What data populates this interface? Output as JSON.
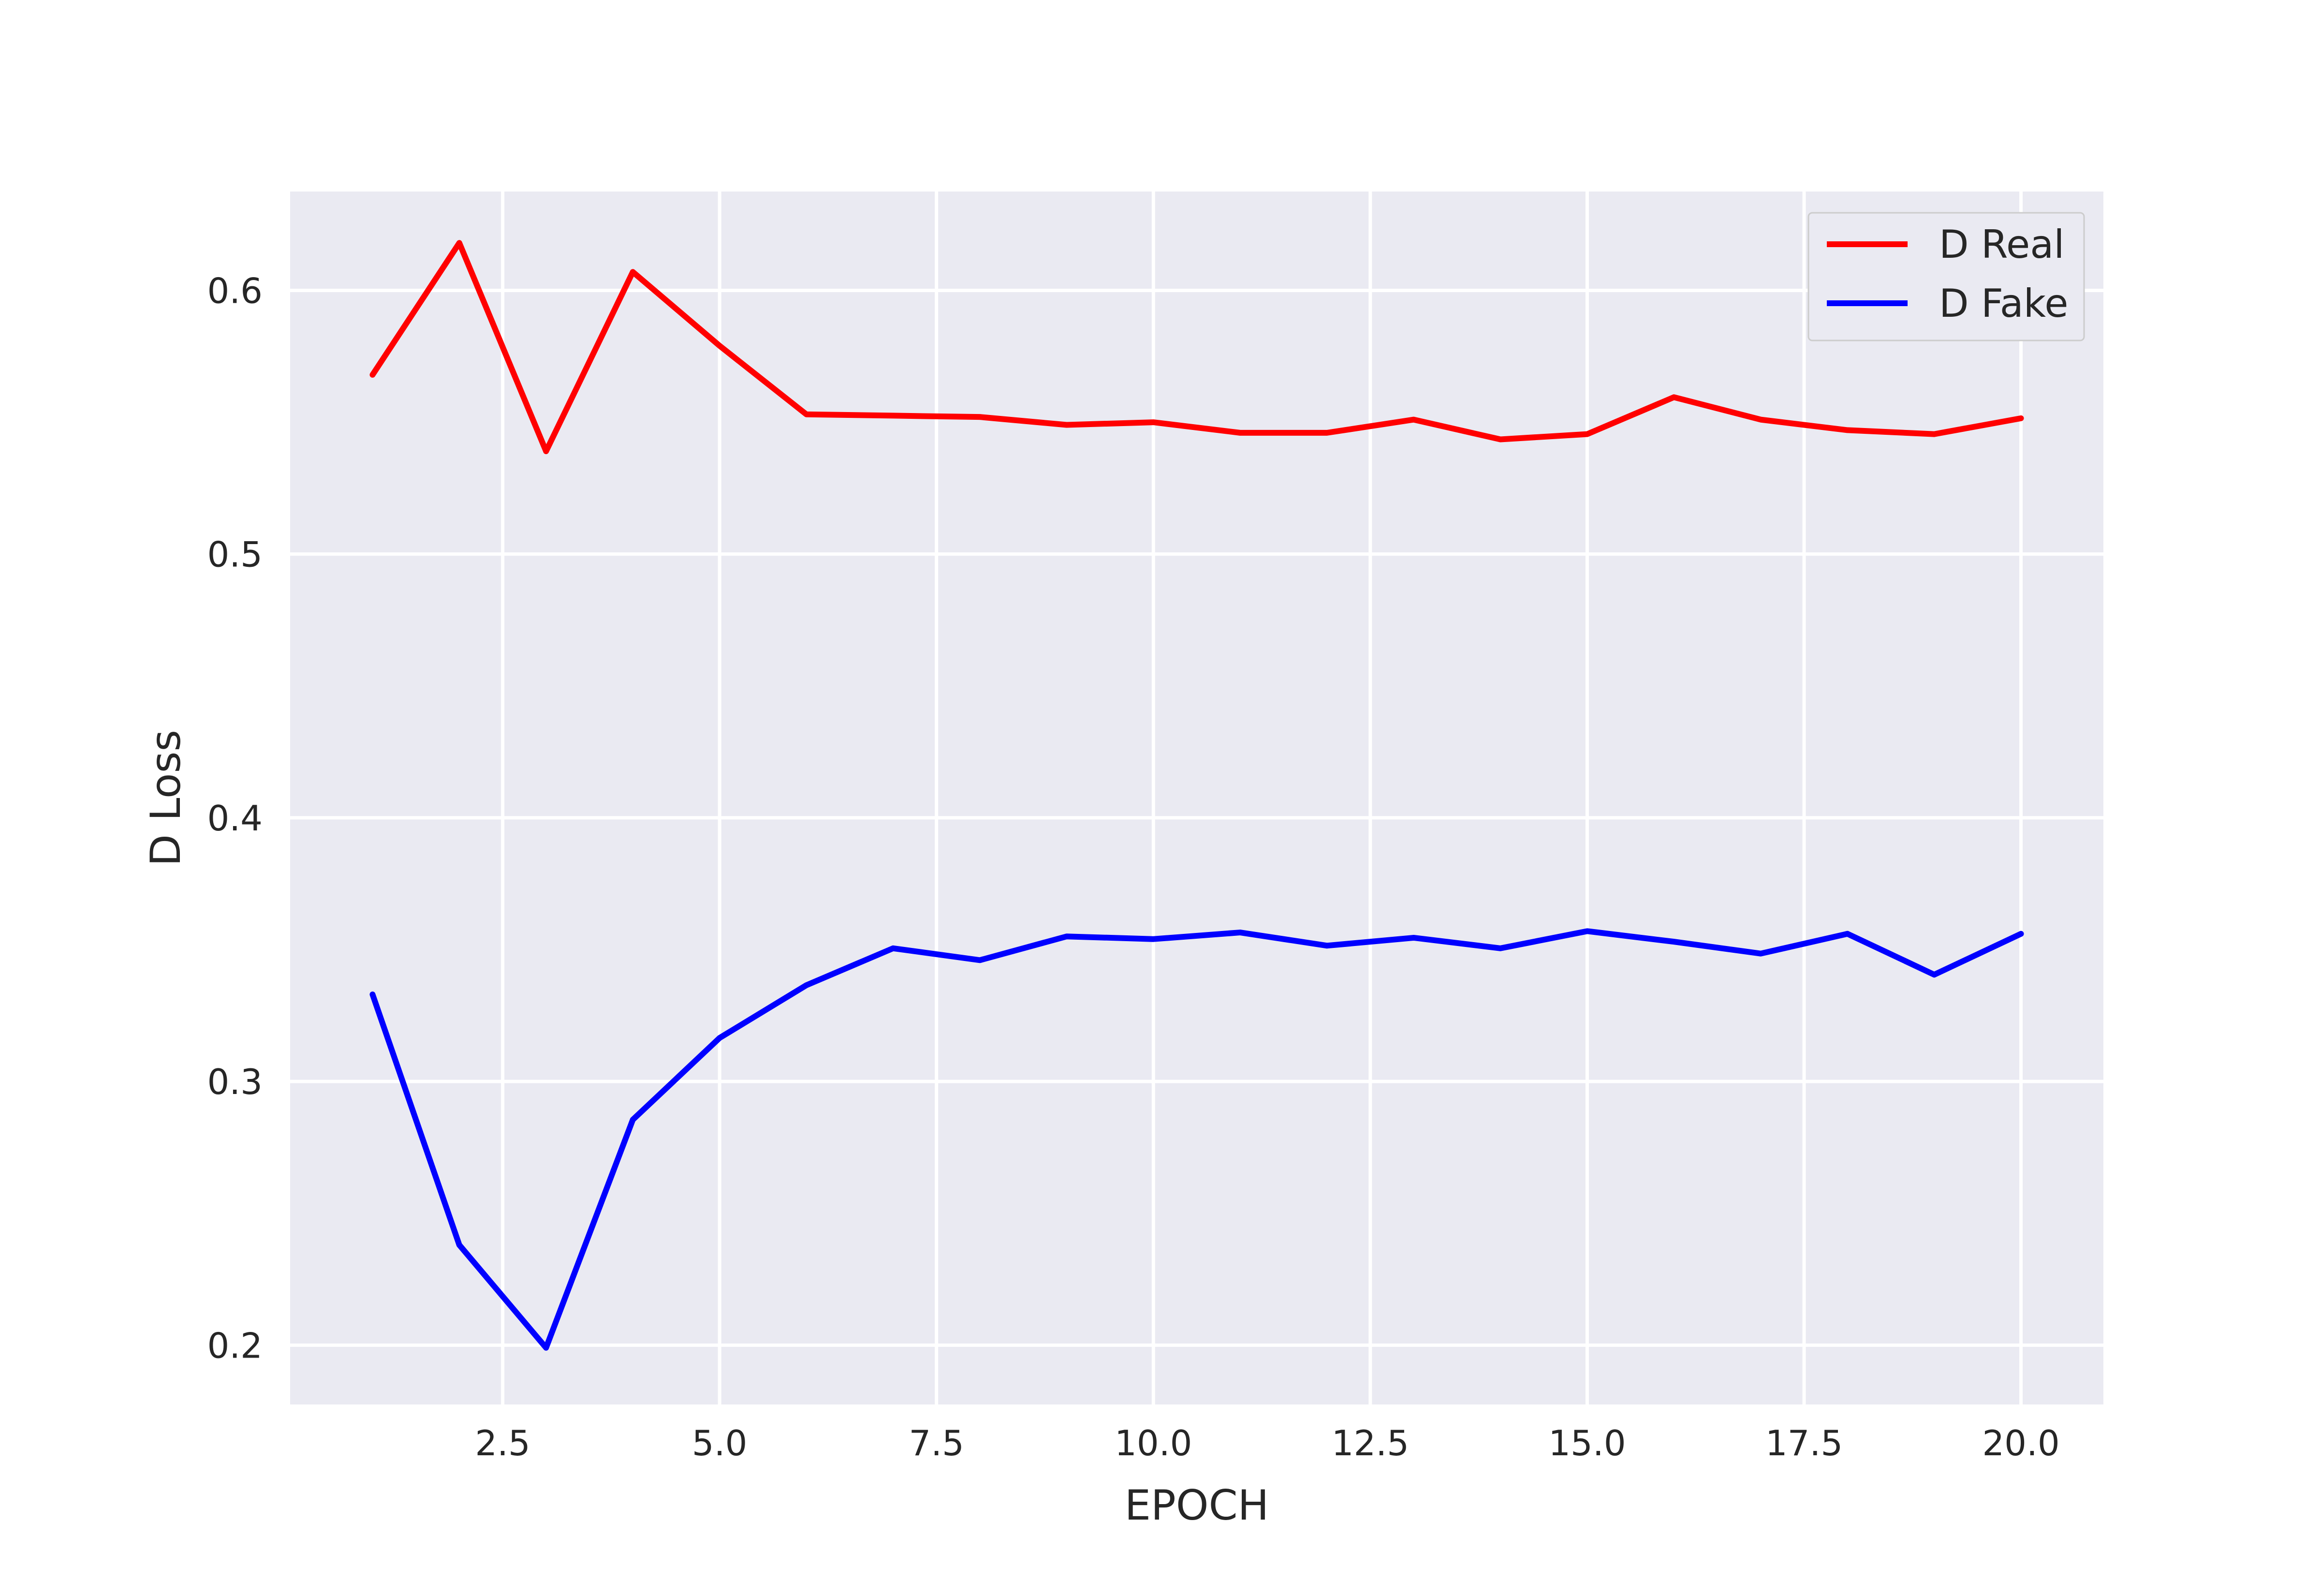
{
  "chart_data": {
    "type": "line",
    "title": "",
    "xlabel": "EPOCH",
    "ylabel": "D Loss",
    "xlim": [
      0.05,
      20.95
    ],
    "ylim": [
      0.1775,
      0.6375
    ],
    "grid": true,
    "legend_position": "top-right",
    "x_ticks": [
      2.5,
      5.0,
      7.5,
      10.0,
      12.5,
      15.0,
      17.5,
      20.0
    ],
    "x_tick_labels": [
      "2.5",
      "5.0",
      "7.5",
      "10.0",
      "12.5",
      "15.0",
      "17.5",
      "20.0"
    ],
    "y_ticks": [
      0.2,
      0.3,
      0.4,
      0.5,
      0.6
    ],
    "y_tick_labels": [
      "0.2",
      "0.3",
      "0.4",
      "0.5",
      "0.6"
    ],
    "x": [
      1,
      2,
      3,
      4,
      5,
      6,
      7,
      8,
      9,
      10,
      11,
      12,
      13,
      14,
      15,
      16,
      17,
      18,
      19,
      20
    ],
    "series": [
      {
        "name": "D Real",
        "color": "#ff0000",
        "values": [
          0.568,
          0.618,
          0.539,
          0.607,
          0.579,
          0.553,
          0.5525,
          0.552,
          0.549,
          0.55,
          0.546,
          0.546,
          0.551,
          0.5435,
          0.5455,
          0.5595,
          0.551,
          0.547,
          0.5455,
          0.5515
        ]
      },
      {
        "name": "D Fake",
        "color": "#0000ff",
        "values": [
          0.333,
          0.238,
          0.199,
          0.2855,
          0.3165,
          0.3365,
          0.3505,
          0.346,
          0.355,
          0.354,
          0.3565,
          0.3515,
          0.3545,
          0.3505,
          0.357,
          0.353,
          0.3485,
          0.356,
          0.3405,
          0.356
        ]
      }
    ]
  },
  "colors": {
    "plot_background": "#eaeaf2",
    "grid": "#ffffff",
    "text": "#262626"
  }
}
